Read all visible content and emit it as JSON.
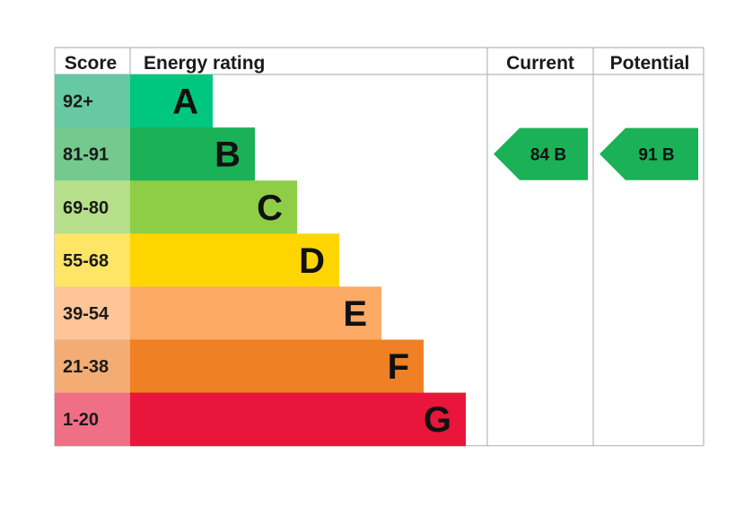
{
  "chart_data": {
    "type": "bar",
    "headers": {
      "score": "Score",
      "rating": "Energy rating",
      "current": "Current",
      "potential": "Potential"
    },
    "bands": [
      {
        "letter": "A",
        "range": "92+",
        "color": "#00c77f",
        "score_bg": "#66c9a4"
      },
      {
        "letter": "B",
        "range": "81-91",
        "color": "#1bb156",
        "score_bg": "#74c98f"
      },
      {
        "letter": "C",
        "range": "69-80",
        "color": "#8dce46",
        "score_bg": "#b5df8a"
      },
      {
        "letter": "D",
        "range": "55-68",
        "color": "#ffd500",
        "score_bg": "#ffe566"
      },
      {
        "letter": "E",
        "range": "39-54",
        "color": "#fcaa65",
        "score_bg": "#fdc598"
      },
      {
        "letter": "F",
        "range": "21-38",
        "color": "#ef8023",
        "score_bg": "#f2ac74"
      },
      {
        "letter": "G",
        "range": "1-20",
        "color": "#e9153b",
        "score_bg": "#ef6f86"
      }
    ],
    "current": {
      "value": 84,
      "letter": "B",
      "label": "84  B",
      "color": "#1bb156"
    },
    "potential": {
      "value": 91,
      "letter": "B",
      "label": "91  B",
      "color": "#1bb156"
    }
  }
}
